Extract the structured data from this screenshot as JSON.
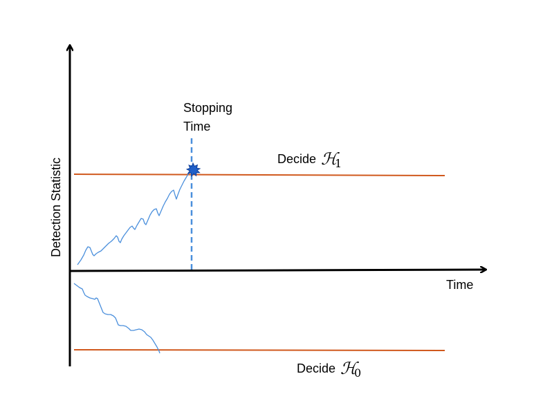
{
  "axes": {
    "y_label": "Detection Statistic",
    "x_label": "Time"
  },
  "annotations": {
    "stopping_line1": "Stopping",
    "stopping_line2": "Time",
    "decide_h1_word": "Decide",
    "decide_h1_symbol": "ℋ",
    "decide_h1_sub": "1",
    "decide_h0_word": "Decide",
    "decide_h0_symbol": "ℋ",
    "decide_h0_sub": "0"
  },
  "colors": {
    "threshold": "#d0581c",
    "path": "#4a8fdc",
    "stop_marker": "#1f5fc8",
    "axis": "#000000"
  }
}
